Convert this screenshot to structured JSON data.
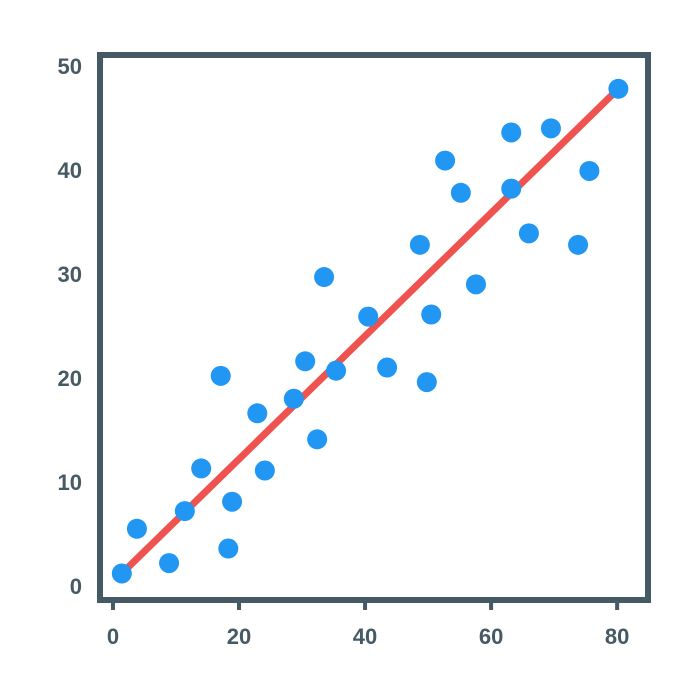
{
  "chart_data": {
    "type": "scatter",
    "x": [
      1.4,
      3.8,
      8.9,
      11.4,
      14.0,
      17.1,
      18.3,
      18.9,
      22.9,
      24.1,
      28.7,
      30.5,
      32.4,
      33.5,
      35.4,
      40.5,
      43.5,
      48.7,
      49.8,
      50.5,
      52.7,
      55.2,
      57.6,
      63.2,
      63.2,
      66.0,
      69.5,
      73.8,
      75.6,
      80.2
    ],
    "values": [
      1.4,
      5.7,
      2.4,
      7.4,
      11.5,
      20.4,
      3.8,
      8.3,
      16.8,
      11.3,
      18.2,
      21.8,
      14.3,
      29.9,
      20.9,
      26.1,
      21.2,
      33.0,
      19.8,
      26.3,
      41.1,
      38.0,
      29.2,
      43.8,
      38.4,
      34.1,
      44.2,
      33.0,
      40.1,
      48.0
    ],
    "color": "#2196f3",
    "fit_line": {
      "x": [
        1.4,
        80.2
      ],
      "values": [
        1.4,
        48.0
      ],
      "color": "#ef5350"
    },
    "xlim": [
      -2.06,
      84.9
    ],
    "ylim": [
      -1.15,
      51.25
    ],
    "xticks": [
      0,
      20,
      40,
      60,
      80
    ],
    "yticks": [
      0,
      10,
      20,
      30,
      40,
      50
    ],
    "frame_color": "#455a64"
  }
}
